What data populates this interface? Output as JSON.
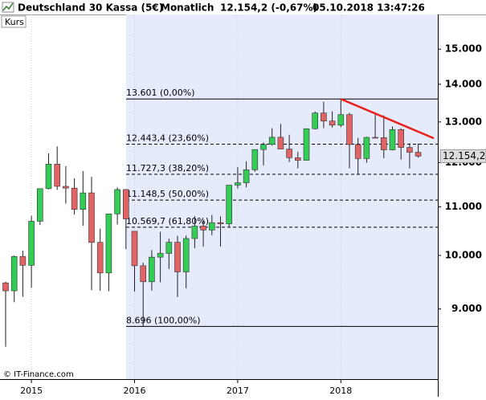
{
  "chart_data": {
    "type": "candlestick",
    "title": "Deutschland 30 Kassa (5€)",
    "interval": "Monatlich",
    "quote": "12.154,2 (-0,67%)",
    "timestamp": "05.10.2018 13:47:26",
    "source": "© IT-Finance.com",
    "log_scale": true,
    "grid": true,
    "categories": [
      null,
      null,
      null,
      "2015",
      null,
      null,
      null,
      null,
      null,
      null,
      null,
      null,
      null,
      null,
      null,
      "2016",
      null,
      null,
      null,
      null,
      null,
      null,
      null,
      null,
      null,
      null,
      null,
      "2017",
      null,
      null,
      null,
      null,
      null,
      null,
      null,
      null,
      null,
      null,
      null,
      "2018",
      null,
      null,
      null,
      null,
      null,
      null,
      null,
      null,
      null
    ],
    "series": [
      {
        "name": "Kurs",
        "up_color": "#33cc55",
        "down_color": "#e06464",
        "open": [
          9474,
          9326,
          9980,
          9806,
          10694,
          11402,
          11966,
          11454,
          11414,
          10945,
          11308,
          10259,
          9660,
          10850,
          11382,
          10486,
          9798,
          9495,
          9965,
          10039,
          10262,
          9680,
          10337,
          10593,
          10511,
          10665,
          10640,
          11481,
          11535,
          11834,
          12313,
          12438,
          12615,
          12325,
          12118,
          12056,
          12829,
          13230,
          13024,
          12918,
          13189,
          12436,
          12097,
          12612,
          12605,
          12306,
          12806,
          12364,
          12247
        ],
        "high": [
          9495,
          9996,
          10093,
          10810,
          11402,
          12219,
          12390,
          11920,
          11635,
          11802,
          11670,
          10540,
          10850,
          11430,
          11390,
          10486,
          9857,
          10104,
          10474,
          10335,
          10392,
          10400,
          10802,
          10736,
          10827,
          10800,
          11482,
          11893,
          12031,
          12313,
          12486,
          12842,
          12951,
          12676,
          12261,
          12836,
          13267,
          13526,
          13275,
          13597,
          13235,
          12600,
          12625,
          13204,
          13170,
          12887,
          12840,
          12465,
          12460
        ],
        "low": [
          8355,
          9120,
          9219,
          9382,
          10614,
          11386,
          11373,
          11070,
          10835,
          10599,
          9338,
          9325,
          9318,
          10625,
          10123,
          9314,
          8699,
          9331,
          9485,
          9737,
          9214,
          9373,
          10144,
          10174,
          10403,
          10175,
          10582,
          11409,
          11433,
          11787,
          11935,
          12411,
          12320,
          12016,
          11868,
          12052,
          12808,
          12844,
          12856,
          12871,
          11868,
          11727,
          11998,
          12598,
          12104,
          12292,
          12075,
          11865,
          12120
        ],
        "close": [
          9326,
          9980,
          9806,
          10694,
          11402,
          11966,
          11454,
          11414,
          10945,
          11308,
          10259,
          9660,
          10850,
          11382,
          10743,
          9798,
          9495,
          9965,
          10039,
          10262,
          9680,
          10337,
          10593,
          10511,
          10665,
          10640,
          11481,
          11535,
          11834,
          12313,
          12438,
          12615,
          12325,
          12118,
          12056,
          12829,
          13230,
          13024,
          12918,
          13189,
          12436,
          12097,
          12612,
          12605,
          12306,
          12806,
          12364,
          12247,
          12154.2
        ]
      }
    ],
    "ylim": [
      7840,
      16060
    ],
    "yticks": [
      {
        "value": 9000,
        "label": "9.000"
      },
      {
        "value": 10000,
        "label": "10.000"
      },
      {
        "value": 11000,
        "label": "11.000"
      },
      {
        "value": 12000,
        "label": "12.000"
      },
      {
        "value": 13000,
        "label": "13.000"
      },
      {
        "value": 14000,
        "label": "14.000"
      },
      {
        "value": 15000,
        "label": "15.000"
      }
    ],
    "last_price": {
      "value": 12154.2,
      "label": "12.154,2"
    },
    "fib_levels": [
      {
        "value": 13601,
        "label": "13.601 (0,00%)"
      },
      {
        "value": 12443.4,
        "label": "12.443,4 (23,60%)"
      },
      {
        "value": 11727.3,
        "label": "11.727,3 (38,20%)"
      },
      {
        "value": 11148.5,
        "label": "11.148,5 (50,00%)"
      },
      {
        "value": 10569.7,
        "label": "10.569,7 (61,80%)"
      },
      {
        "value": 8696,
        "label": "8.696 (100,00%)"
      }
    ],
    "trendline": {
      "color": "#e8201c",
      "values": [
        13600,
        12590
      ]
    }
  }
}
